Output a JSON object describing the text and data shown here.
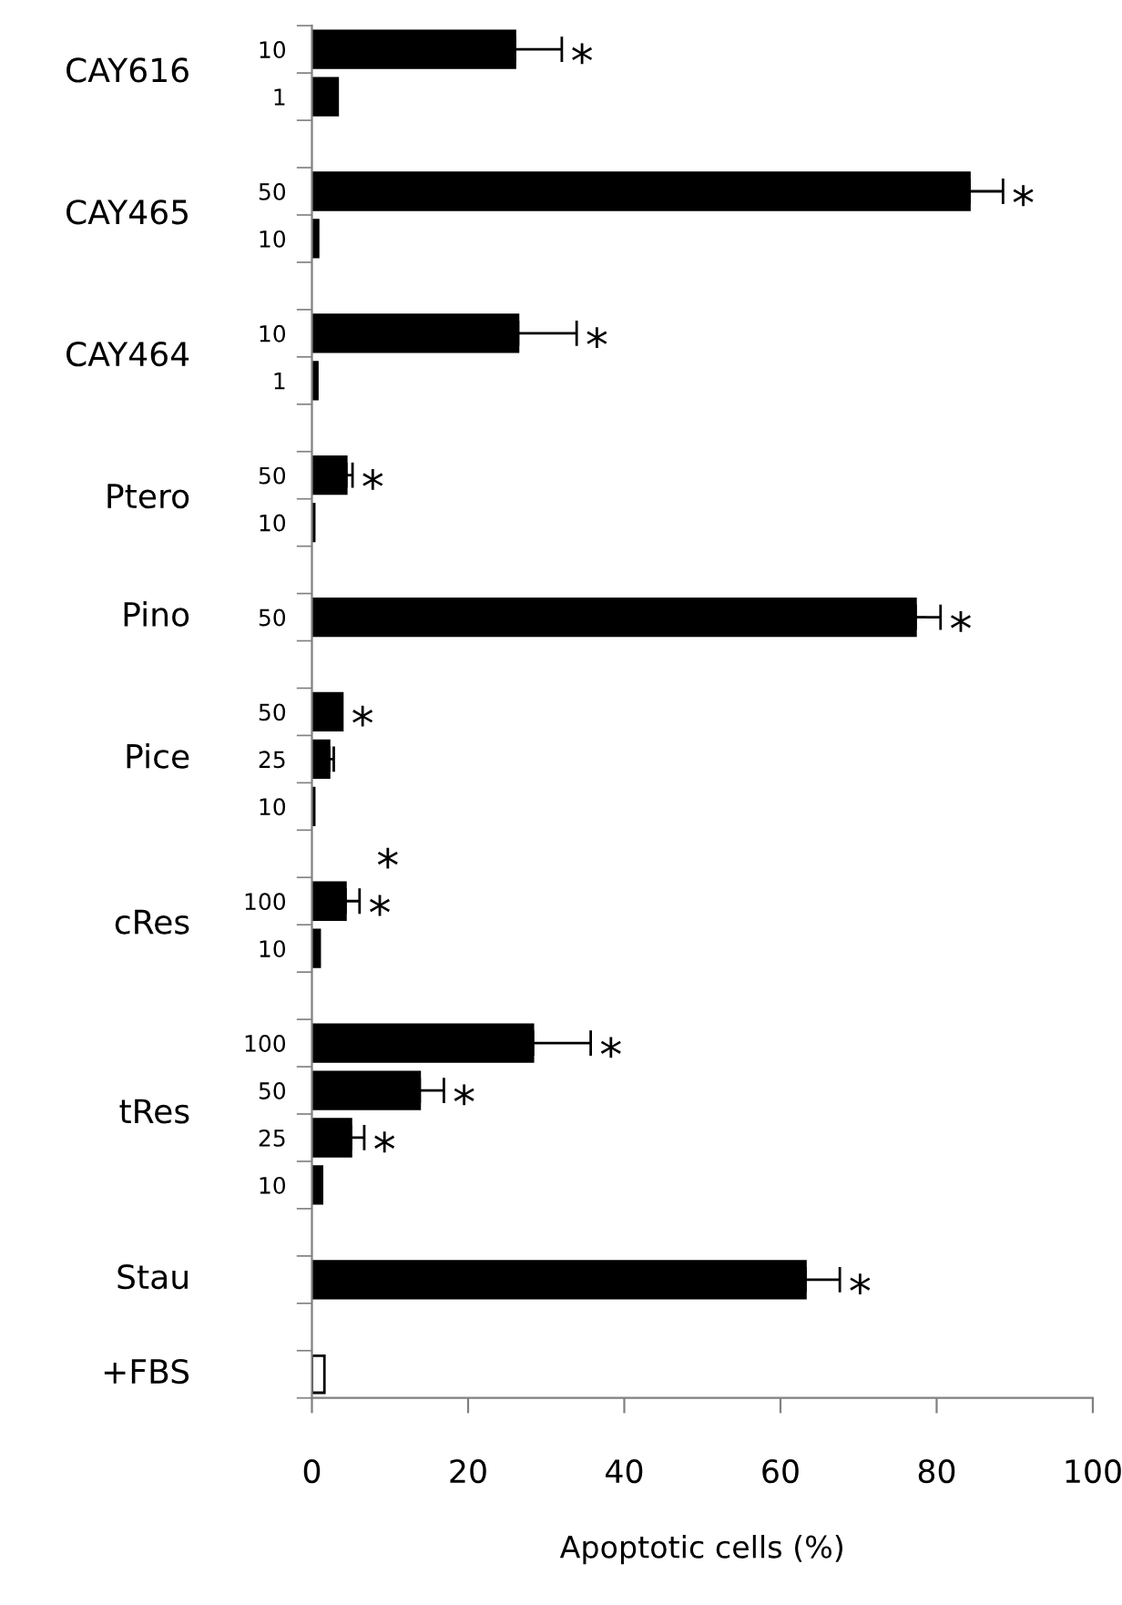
{
  "chart_data": {
    "type": "bar",
    "orientation": "horizontal",
    "xlabel": "Apoptotic cells (%)",
    "categories": [
      "10",
      "1",
      null,
      "50",
      "10",
      null,
      "10",
      "1",
      null,
      "50",
      "10",
      null,
      "50",
      null,
      "50",
      "25",
      "10",
      null,
      "100",
      "10",
      null,
      "100",
      "50",
      "25",
      "10",
      null,
      null,
      null,
      null
    ],
    "values": [
      26.0,
      3.3,
      null,
      84.2,
      0.8,
      null,
      26.4,
      0.7,
      null,
      4.4,
      0.3,
      null,
      77.3,
      null,
      3.9,
      2.2,
      0.3,
      null,
      4.3,
      1.0,
      null,
      28.3,
      13.8,
      5.0,
      1.3,
      null,
      63.2,
      null,
      1.6
    ],
    "errors": [
      6.0,
      null,
      null,
      4.3,
      null,
      null,
      7.5,
      null,
      null,
      0.8,
      null,
      null,
      3.2,
      null,
      null,
      0.6,
      null,
      null,
      1.8,
      null,
      null,
      7.4,
      3.1,
      1.7,
      null,
      null,
      4.4,
      null,
      null
    ],
    "colors": [
      "#000000",
      "#000000",
      null,
      "#000000",
      "#000000",
      null,
      "#000000",
      "#000000",
      null,
      "#000000",
      "#000000",
      null,
      "#000000",
      null,
      "#000000",
      "#000000",
      "#000000",
      null,
      "#000000",
      "#000000",
      null,
      "#000000",
      "#000000",
      "#000000",
      "#000000",
      null,
      "#000000",
      null,
      "#ffffff"
    ],
    "value_labels": [
      "*",
      null,
      null,
      "*",
      null,
      null,
      "*",
      null,
      null,
      "*",
      null,
      null,
      "*",
      null,
      "*",
      null,
      null,
      "*",
      "*",
      null,
      null,
      "*",
      "*",
      "*",
      null,
      null,
      "*",
      null,
      null
    ],
    "annotations": [
      "CAY616",
      "CAY465",
      "CAY464",
      "Ptero",
      "Pino",
      "Pice",
      "cRes",
      "tRes",
      "Stau",
      "+FBS"
    ],
    "xlim": [
      0,
      100
    ],
    "xticks": [
      0,
      20,
      40,
      60,
      80,
      100
    ],
    "grid": false,
    "legend": false
  }
}
